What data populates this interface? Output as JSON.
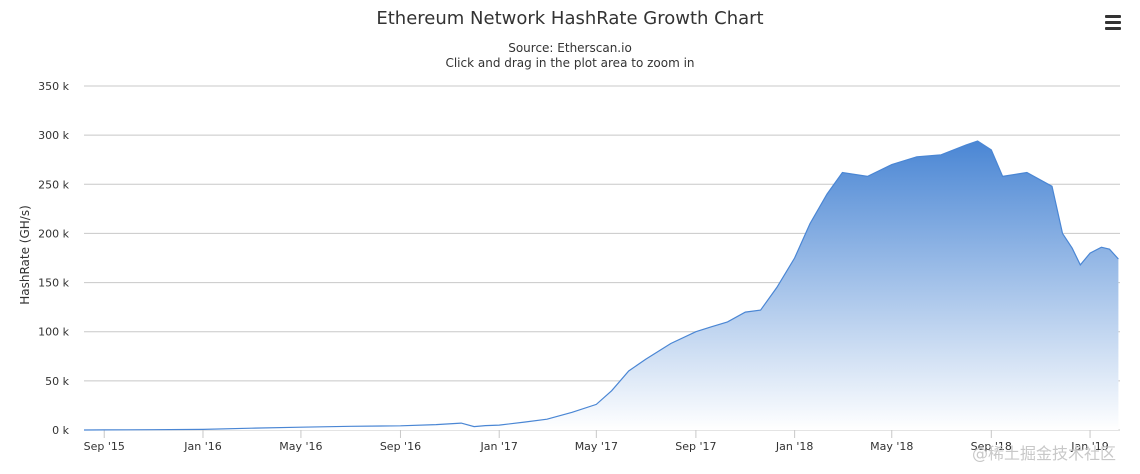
{
  "header": {
    "title": "Ethereum Network HashRate Growth Chart",
    "subtitle_line1": "Source: Etherscan.io",
    "subtitle_line2": "Click and drag in the plot area to zoom in"
  },
  "watermark": "@稀土掘金技术社区",
  "menu": {
    "icon": "hamburger-menu-icon"
  },
  "colors": {
    "area_top": "#4a86d4",
    "area_bottom": "#ffffff",
    "line": "#4a86d4",
    "grid": "#c8c8c8",
    "title": "#333333",
    "text": "#333333"
  },
  "chart_data": {
    "type": "area",
    "title": "Ethereum Network HashRate Growth Chart",
    "subtitle": "Source: Etherscan.io",
    "xlabel": "",
    "ylabel": "HashRate (GH/s)",
    "ylim": [
      0,
      350000
    ],
    "xlim": [
      "2015-08-07",
      "2019-02-07"
    ],
    "grid": true,
    "legend": "none",
    "y_ticks": [
      {
        "value": 0,
        "label": "0 k"
      },
      {
        "value": 50000,
        "label": "50 k"
      },
      {
        "value": 100000,
        "label": "100 k"
      },
      {
        "value": 150000,
        "label": "150 k"
      },
      {
        "value": 200000,
        "label": "200 k"
      },
      {
        "value": 250000,
        "label": "250 k"
      },
      {
        "value": 300000,
        "label": "300 k"
      },
      {
        "value": 350000,
        "label": "350 k"
      }
    ],
    "x_ticks": [
      {
        "date": "2015-09-01",
        "label": "Sep '15"
      },
      {
        "date": "2016-01-01",
        "label": "Jan '16"
      },
      {
        "date": "2016-05-01",
        "label": "May '16"
      },
      {
        "date": "2016-09-01",
        "label": "Sep '16"
      },
      {
        "date": "2017-01-01",
        "label": "Jan '17"
      },
      {
        "date": "2017-05-01",
        "label": "May '17"
      },
      {
        "date": "2017-09-01",
        "label": "Sep '17"
      },
      {
        "date": "2018-01-01",
        "label": "Jan '18"
      },
      {
        "date": "2018-05-01",
        "label": "May '18"
      },
      {
        "date": "2018-09-01",
        "label": "Sep '18"
      },
      {
        "date": "2019-01-01",
        "label": "Jan '19"
      }
    ],
    "series": [
      {
        "points": [
          [
            "2015-08-07",
            0
          ],
          [
            "2015-09-01",
            100
          ],
          [
            "2015-11-01",
            300
          ],
          [
            "2016-01-01",
            600
          ],
          [
            "2016-03-01",
            1800
          ],
          [
            "2016-05-01",
            2800
          ],
          [
            "2016-07-01",
            3800
          ],
          [
            "2016-09-01",
            4300
          ],
          [
            "2016-10-15",
            5500
          ],
          [
            "2016-11-15",
            7000
          ],
          [
            "2016-12-01",
            3500
          ],
          [
            "2016-12-15",
            4500
          ],
          [
            "2017-01-01",
            5000
          ],
          [
            "2017-02-01",
            8000
          ],
          [
            "2017-03-01",
            11000
          ],
          [
            "2017-04-01",
            18000
          ],
          [
            "2017-05-01",
            26000
          ],
          [
            "2017-05-20",
            40000
          ],
          [
            "2017-06-10",
            60000
          ],
          [
            "2017-07-01",
            72000
          ],
          [
            "2017-08-01",
            88000
          ],
          [
            "2017-09-01",
            100000
          ],
          [
            "2017-09-20",
            105000
          ],
          [
            "2017-10-10",
            110000
          ],
          [
            "2017-11-01",
            120000
          ],
          [
            "2017-11-20",
            122000
          ],
          [
            "2017-12-10",
            145000
          ],
          [
            "2018-01-01",
            175000
          ],
          [
            "2018-01-20",
            210000
          ],
          [
            "2018-02-10",
            240000
          ],
          [
            "2018-03-01",
            262000
          ],
          [
            "2018-04-01",
            258000
          ],
          [
            "2018-05-01",
            270000
          ],
          [
            "2018-06-01",
            278000
          ],
          [
            "2018-07-01",
            280000
          ],
          [
            "2018-08-01",
            290000
          ],
          [
            "2018-08-15",
            294000
          ],
          [
            "2018-09-01",
            285000
          ],
          [
            "2018-09-15",
            258000
          ],
          [
            "2018-10-15",
            262000
          ],
          [
            "2018-11-15",
            248000
          ],
          [
            "2018-11-28",
            200000
          ],
          [
            "2018-12-10",
            185000
          ],
          [
            "2018-12-20",
            168000
          ],
          [
            "2019-01-01",
            180000
          ],
          [
            "2019-01-15",
            186000
          ],
          [
            "2019-01-25",
            184000
          ],
          [
            "2019-02-05",
            174000
          ]
        ]
      }
    ]
  }
}
